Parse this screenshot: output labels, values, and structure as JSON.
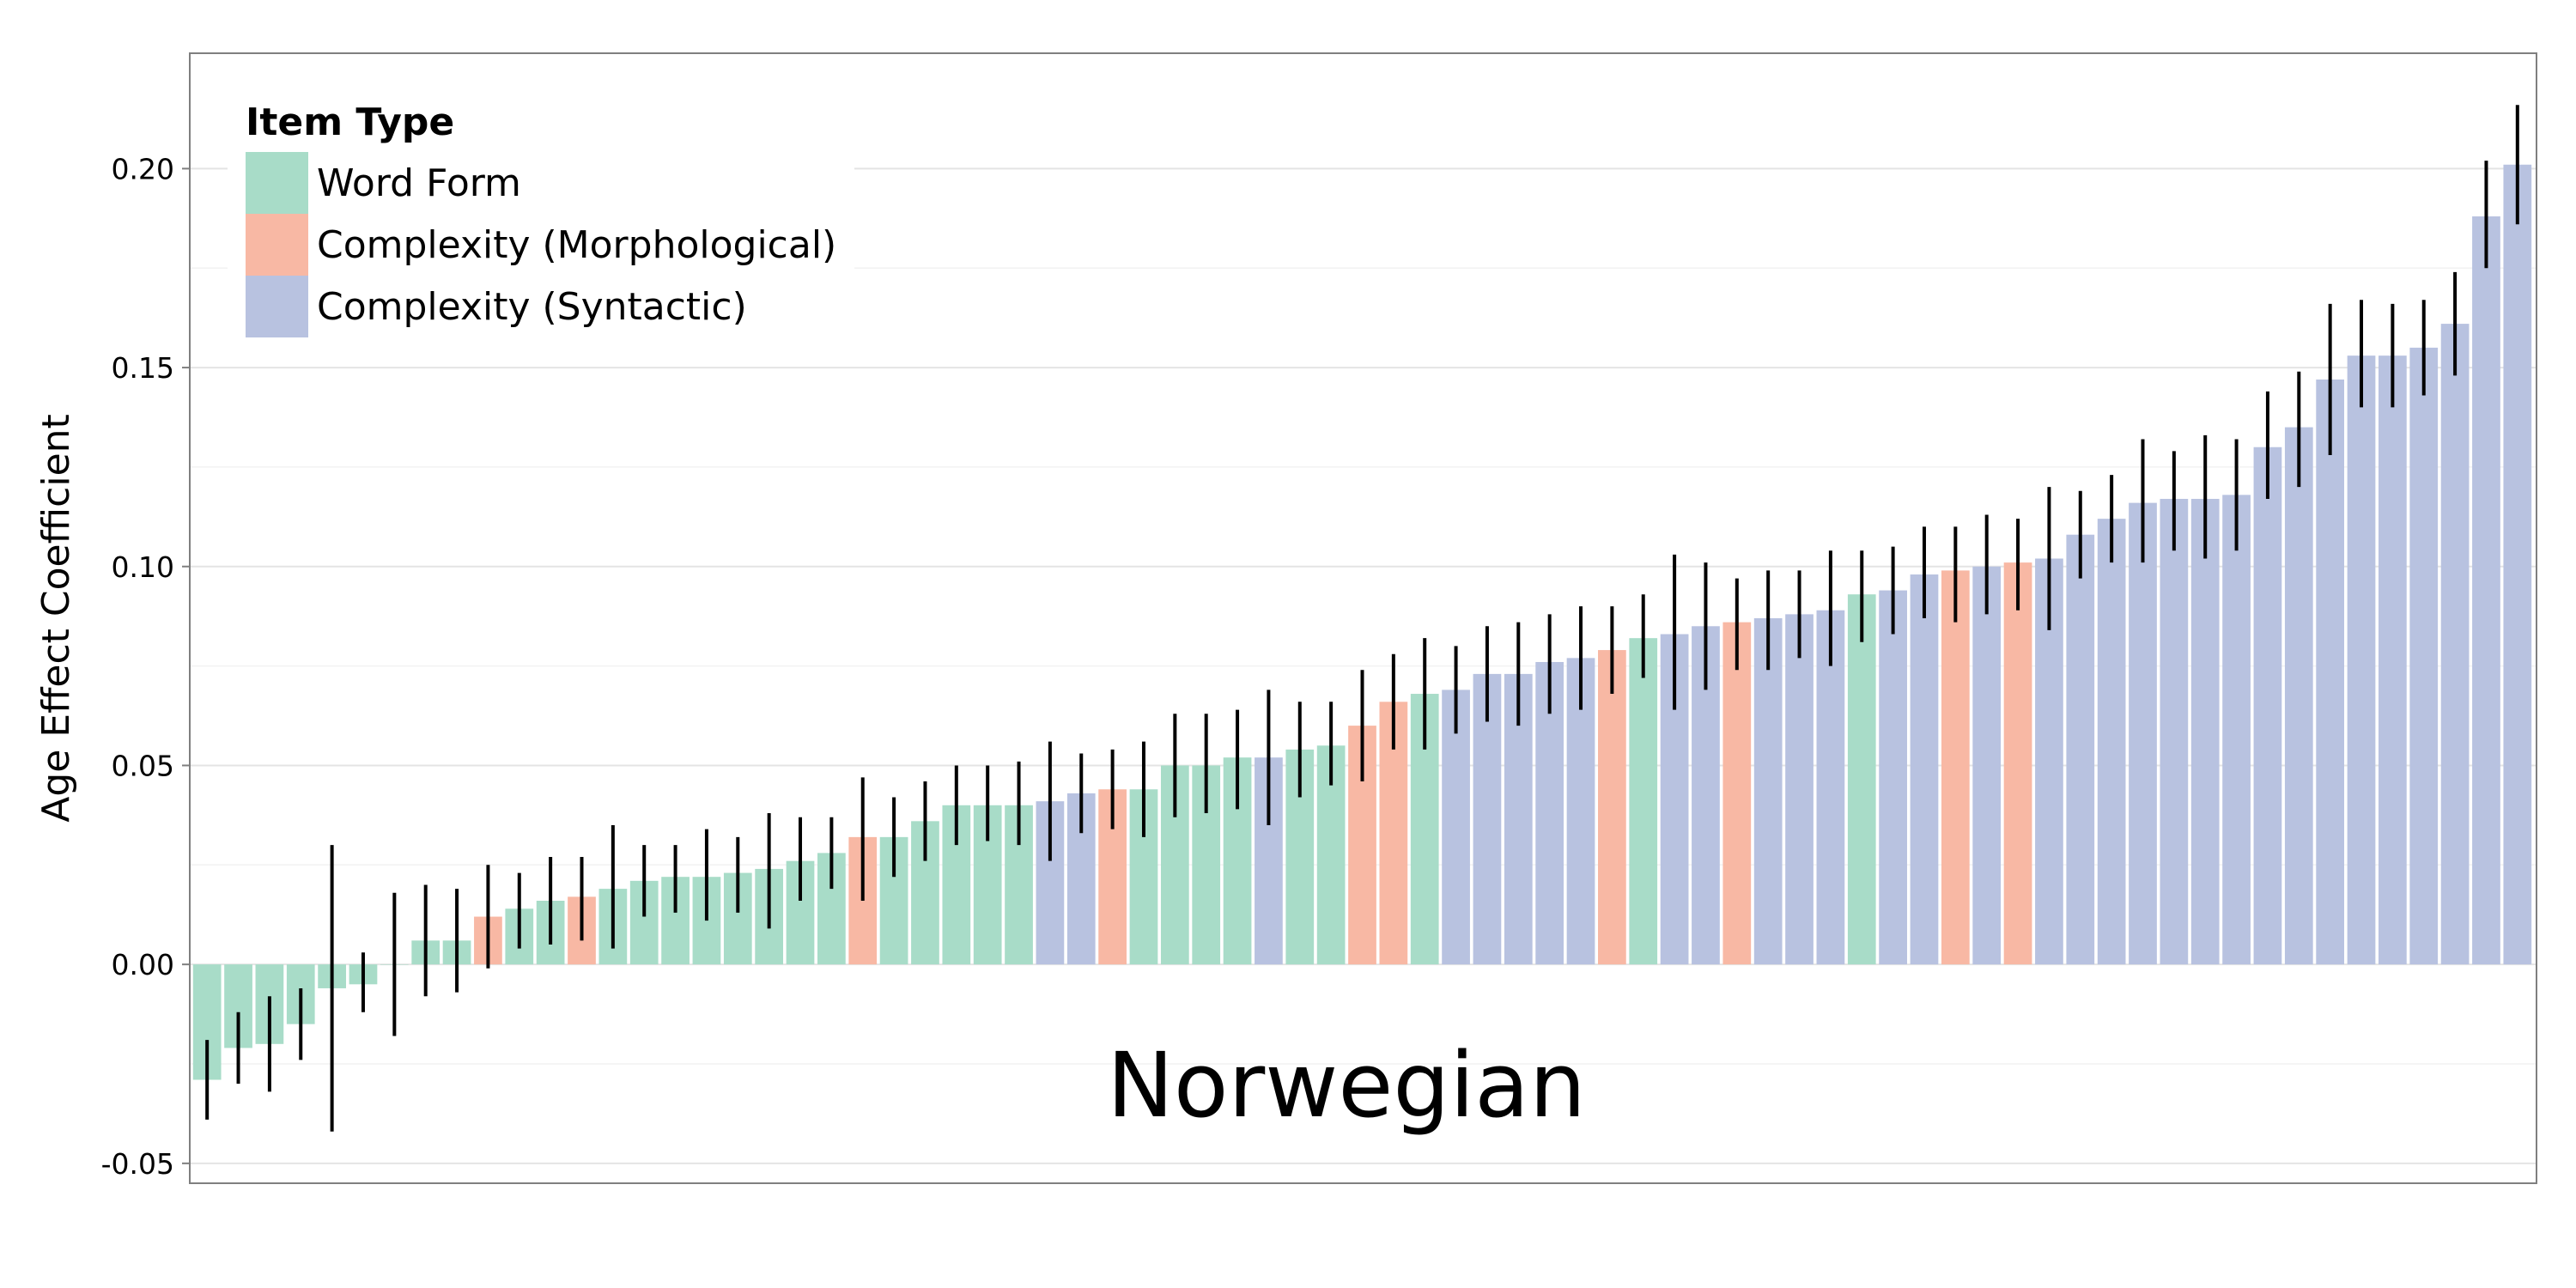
{
  "chart_data": {
    "type": "bar",
    "ylabel": "Age Effect Coefficient",
    "xlabel": "",
    "ylim": [
      -0.055,
      0.229
    ],
    "yticks": [
      "-0.05",
      "0.00",
      "0.05",
      "0.10",
      "0.15",
      "0.20"
    ],
    "ytick_values": [
      -0.05,
      0.0,
      0.05,
      0.1,
      0.15,
      0.2
    ],
    "grid": true,
    "panel_label": "Norwegian",
    "legend": {
      "title": "Item Type",
      "placement": "top-left",
      "entries": [
        {
          "name": "Word Form",
          "color": "#a8dcc8"
        },
        {
          "name": "Complexity (Morphological)",
          "color": "#f8b8a4"
        },
        {
          "name": "Complexity (Syntactic)",
          "color": "#b8c2e0"
        }
      ]
    },
    "colors": {
      "Word Form": "#a8dcc8",
      "Complexity (Morphological)": "#f8b8a4",
      "Complexity (Syntactic)": "#b8c2e0"
    },
    "series": [
      {
        "type": "Word Form",
        "value": -0.029,
        "lo": -0.039,
        "hi": -0.019
      },
      {
        "type": "Word Form",
        "value": -0.021,
        "lo": -0.03,
        "hi": -0.012
      },
      {
        "type": "Word Form",
        "value": -0.02,
        "lo": -0.032,
        "hi": -0.008
      },
      {
        "type": "Word Form",
        "value": -0.015,
        "lo": -0.024,
        "hi": -0.006
      },
      {
        "type": "Word Form",
        "value": -0.006,
        "lo": -0.042,
        "hi": 0.03
      },
      {
        "type": "Word Form",
        "value": -0.005,
        "lo": -0.012,
        "hi": 0.003
      },
      {
        "type": "Word Form",
        "value": 0.0,
        "lo": -0.018,
        "hi": 0.018
      },
      {
        "type": "Word Form",
        "value": 0.006,
        "lo": -0.008,
        "hi": 0.02
      },
      {
        "type": "Word Form",
        "value": 0.006,
        "lo": -0.007,
        "hi": 0.019
      },
      {
        "type": "Complexity (Morphological)",
        "value": 0.012,
        "lo": -0.001,
        "hi": 0.025
      },
      {
        "type": "Word Form",
        "value": 0.014,
        "lo": 0.004,
        "hi": 0.023
      },
      {
        "type": "Word Form",
        "value": 0.016,
        "lo": 0.005,
        "hi": 0.027
      },
      {
        "type": "Complexity (Morphological)",
        "value": 0.017,
        "lo": 0.006,
        "hi": 0.027
      },
      {
        "type": "Word Form",
        "value": 0.019,
        "lo": 0.004,
        "hi": 0.035
      },
      {
        "type": "Word Form",
        "value": 0.021,
        "lo": 0.012,
        "hi": 0.03
      },
      {
        "type": "Word Form",
        "value": 0.022,
        "lo": 0.013,
        "hi": 0.03
      },
      {
        "type": "Word Form",
        "value": 0.022,
        "lo": 0.011,
        "hi": 0.034
      },
      {
        "type": "Word Form",
        "value": 0.023,
        "lo": 0.013,
        "hi": 0.032
      },
      {
        "type": "Word Form",
        "value": 0.024,
        "lo": 0.009,
        "hi": 0.038
      },
      {
        "type": "Word Form",
        "value": 0.026,
        "lo": 0.016,
        "hi": 0.037
      },
      {
        "type": "Word Form",
        "value": 0.028,
        "lo": 0.019,
        "hi": 0.037
      },
      {
        "type": "Complexity (Morphological)",
        "value": 0.032,
        "lo": 0.016,
        "hi": 0.047
      },
      {
        "type": "Word Form",
        "value": 0.032,
        "lo": 0.022,
        "hi": 0.042
      },
      {
        "type": "Word Form",
        "value": 0.036,
        "lo": 0.026,
        "hi": 0.046
      },
      {
        "type": "Word Form",
        "value": 0.04,
        "lo": 0.03,
        "hi": 0.05
      },
      {
        "type": "Word Form",
        "value": 0.04,
        "lo": 0.031,
        "hi": 0.05
      },
      {
        "type": "Word Form",
        "value": 0.04,
        "lo": 0.03,
        "hi": 0.051
      },
      {
        "type": "Complexity (Syntactic)",
        "value": 0.041,
        "lo": 0.026,
        "hi": 0.056
      },
      {
        "type": "Complexity (Syntactic)",
        "value": 0.043,
        "lo": 0.033,
        "hi": 0.053
      },
      {
        "type": "Complexity (Morphological)",
        "value": 0.044,
        "lo": 0.034,
        "hi": 0.054
      },
      {
        "type": "Word Form",
        "value": 0.044,
        "lo": 0.032,
        "hi": 0.056
      },
      {
        "type": "Word Form",
        "value": 0.05,
        "lo": 0.037,
        "hi": 0.063
      },
      {
        "type": "Word Form",
        "value": 0.05,
        "lo": 0.038,
        "hi": 0.063
      },
      {
        "type": "Word Form",
        "value": 0.052,
        "lo": 0.039,
        "hi": 0.064
      },
      {
        "type": "Complexity (Syntactic)",
        "value": 0.052,
        "lo": 0.035,
        "hi": 0.069
      },
      {
        "type": "Word Form",
        "value": 0.054,
        "lo": 0.042,
        "hi": 0.066
      },
      {
        "type": "Word Form",
        "value": 0.055,
        "lo": 0.045,
        "hi": 0.066
      },
      {
        "type": "Complexity (Morphological)",
        "value": 0.06,
        "lo": 0.046,
        "hi": 0.074
      },
      {
        "type": "Complexity (Morphological)",
        "value": 0.066,
        "lo": 0.054,
        "hi": 0.078
      },
      {
        "type": "Word Form",
        "value": 0.068,
        "lo": 0.054,
        "hi": 0.082
      },
      {
        "type": "Complexity (Syntactic)",
        "value": 0.069,
        "lo": 0.058,
        "hi": 0.08
      },
      {
        "type": "Complexity (Syntactic)",
        "value": 0.073,
        "lo": 0.061,
        "hi": 0.085
      },
      {
        "type": "Complexity (Syntactic)",
        "value": 0.073,
        "lo": 0.06,
        "hi": 0.086
      },
      {
        "type": "Complexity (Syntactic)",
        "value": 0.076,
        "lo": 0.063,
        "hi": 0.088
      },
      {
        "type": "Complexity (Syntactic)",
        "value": 0.077,
        "lo": 0.064,
        "hi": 0.09
      },
      {
        "type": "Complexity (Morphological)",
        "value": 0.079,
        "lo": 0.068,
        "hi": 0.09
      },
      {
        "type": "Word Form",
        "value": 0.082,
        "lo": 0.072,
        "hi": 0.093
      },
      {
        "type": "Complexity (Syntactic)",
        "value": 0.083,
        "lo": 0.064,
        "hi": 0.103
      },
      {
        "type": "Complexity (Syntactic)",
        "value": 0.085,
        "lo": 0.069,
        "hi": 0.101
      },
      {
        "type": "Complexity (Morphological)",
        "value": 0.086,
        "lo": 0.074,
        "hi": 0.097
      },
      {
        "type": "Complexity (Syntactic)",
        "value": 0.087,
        "lo": 0.074,
        "hi": 0.099
      },
      {
        "type": "Complexity (Syntactic)",
        "value": 0.088,
        "lo": 0.077,
        "hi": 0.099
      },
      {
        "type": "Complexity (Syntactic)",
        "value": 0.089,
        "lo": 0.075,
        "hi": 0.104
      },
      {
        "type": "Word Form",
        "value": 0.093,
        "lo": 0.081,
        "hi": 0.104
      },
      {
        "type": "Complexity (Syntactic)",
        "value": 0.094,
        "lo": 0.083,
        "hi": 0.105
      },
      {
        "type": "Complexity (Syntactic)",
        "value": 0.098,
        "lo": 0.087,
        "hi": 0.11
      },
      {
        "type": "Complexity (Morphological)",
        "value": 0.099,
        "lo": 0.086,
        "hi": 0.11
      },
      {
        "type": "Complexity (Syntactic)",
        "value": 0.1,
        "lo": 0.088,
        "hi": 0.113
      },
      {
        "type": "Complexity (Morphological)",
        "value": 0.101,
        "lo": 0.089,
        "hi": 0.112
      },
      {
        "type": "Complexity (Syntactic)",
        "value": 0.102,
        "lo": 0.084,
        "hi": 0.12
      },
      {
        "type": "Complexity (Syntactic)",
        "value": 0.108,
        "lo": 0.097,
        "hi": 0.119
      },
      {
        "type": "Complexity (Syntactic)",
        "value": 0.112,
        "lo": 0.101,
        "hi": 0.123
      },
      {
        "type": "Complexity (Syntactic)",
        "value": 0.116,
        "lo": 0.101,
        "hi": 0.132
      },
      {
        "type": "Complexity (Syntactic)",
        "value": 0.117,
        "lo": 0.104,
        "hi": 0.129
      },
      {
        "type": "Complexity (Syntactic)",
        "value": 0.117,
        "lo": 0.102,
        "hi": 0.133
      },
      {
        "type": "Complexity (Syntactic)",
        "value": 0.118,
        "lo": 0.104,
        "hi": 0.132
      },
      {
        "type": "Complexity (Syntactic)",
        "value": 0.13,
        "lo": 0.117,
        "hi": 0.144
      },
      {
        "type": "Complexity (Syntactic)",
        "value": 0.135,
        "lo": 0.12,
        "hi": 0.149
      },
      {
        "type": "Complexity (Syntactic)",
        "value": 0.147,
        "lo": 0.128,
        "hi": 0.166
      },
      {
        "type": "Complexity (Syntactic)",
        "value": 0.153,
        "lo": 0.14,
        "hi": 0.167
      },
      {
        "type": "Complexity (Syntactic)",
        "value": 0.153,
        "lo": 0.14,
        "hi": 0.166
      },
      {
        "type": "Complexity (Syntactic)",
        "value": 0.155,
        "lo": 0.143,
        "hi": 0.167
      },
      {
        "type": "Complexity (Syntactic)",
        "value": 0.161,
        "lo": 0.148,
        "hi": 0.174
      },
      {
        "type": "Complexity (Syntactic)",
        "value": 0.188,
        "lo": 0.175,
        "hi": 0.202
      },
      {
        "type": "Complexity (Syntactic)",
        "value": 0.201,
        "lo": 0.186,
        "hi": 0.216
      }
    ]
  }
}
